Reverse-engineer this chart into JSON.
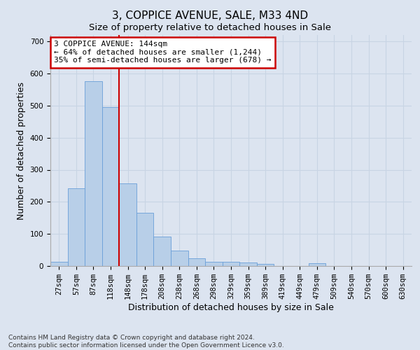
{
  "title": "3, COPPICE AVENUE, SALE, M33 4ND",
  "subtitle": "Size of property relative to detached houses in Sale",
  "xlabel": "Distribution of detached houses by size in Sale",
  "ylabel": "Number of detached properties",
  "bin_labels": [
    "27sqm",
    "57sqm",
    "87sqm",
    "118sqm",
    "148sqm",
    "178sqm",
    "208sqm",
    "238sqm",
    "268sqm",
    "298sqm",
    "329sqm",
    "359sqm",
    "389sqm",
    "419sqm",
    "449sqm",
    "479sqm",
    "509sqm",
    "540sqm",
    "570sqm",
    "600sqm",
    "630sqm"
  ],
  "bar_heights": [
    13,
    243,
    575,
    495,
    258,
    165,
    92,
    48,
    25,
    13,
    13,
    10,
    7,
    0,
    0,
    8,
    0,
    0,
    0,
    0,
    0
  ],
  "bar_color": "#b8cfe8",
  "bar_edge_color": "#6a9fd8",
  "vline_x": 3.5,
  "annotation_line1": "3 COPPICE AVENUE: 144sqm",
  "annotation_line2": "← 64% of detached houses are smaller (1,244)",
  "annotation_line3": "35% of semi-detached houses are larger (678) →",
  "annotation_box_facecolor": "#ffffff",
  "annotation_box_edgecolor": "#cc0000",
  "vline_color": "#cc0000",
  "ylim": [
    0,
    720
  ],
  "yticks": [
    0,
    100,
    200,
    300,
    400,
    500,
    600,
    700
  ],
  "grid_color": "#c8d4e4",
  "bg_color": "#dce4f0",
  "footnote": "Contains HM Land Registry data © Crown copyright and database right 2024.\nContains public sector information licensed under the Open Government Licence v3.0.",
  "title_fontsize": 11,
  "subtitle_fontsize": 9.5,
  "xlabel_fontsize": 9,
  "ylabel_fontsize": 9,
  "annot_fontsize": 8,
  "tick_fontsize": 7.5
}
